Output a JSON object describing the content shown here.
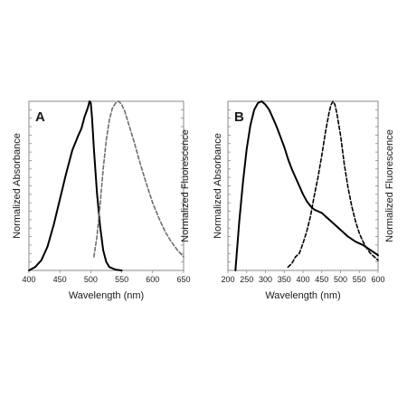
{
  "chart_data": [
    {
      "type": "line",
      "panel_label": "A",
      "xlabel": "Wavelength (nm)",
      "ylabel_left": "Normalized Absorbance",
      "ylabel_right": "Normalized Fluorescence",
      "xlim": [
        400,
        650
      ],
      "ylim": [
        0,
        1
      ],
      "x_ticks": [
        "400",
        "450",
        "500",
        "550",
        "600",
        "650"
      ],
      "x_tick_values": [
        400,
        450,
        500,
        550,
        600,
        650
      ],
      "grid": false,
      "legend": "none",
      "series": [
        {
          "role": "absorbance",
          "style": "solid",
          "color": "#000000",
          "x": [
            400,
            410,
            420,
            430,
            440,
            450,
            460,
            470,
            480,
            485,
            490,
            495,
            498,
            500,
            502,
            505,
            510,
            515,
            520,
            525,
            530,
            540,
            550
          ],
          "y": [
            0.0,
            0.02,
            0.06,
            0.14,
            0.27,
            0.42,
            0.57,
            0.71,
            0.8,
            0.84,
            0.91,
            0.96,
            1.0,
            0.99,
            0.9,
            0.72,
            0.46,
            0.26,
            0.12,
            0.05,
            0.02,
            0.005,
            0.0
          ]
        },
        {
          "role": "fluorescence",
          "style": "dashed",
          "color": "#6e6e6e",
          "x": [
            505,
            510,
            515,
            520,
            525,
            530,
            535,
            540,
            545,
            550,
            555,
            560,
            570,
            580,
            590,
            600,
            610,
            620,
            630,
            640,
            650
          ],
          "y": [
            0.08,
            0.2,
            0.39,
            0.6,
            0.77,
            0.89,
            0.96,
            0.99,
            1.0,
            0.98,
            0.94,
            0.88,
            0.76,
            0.63,
            0.51,
            0.4,
            0.31,
            0.23,
            0.17,
            0.12,
            0.08
          ]
        }
      ]
    },
    {
      "type": "line",
      "panel_label": "B",
      "xlabel": "Wavelength (nm)",
      "ylabel_left": "Normalized Absorbance",
      "ylabel_right": "Normalized Fluorescence",
      "xlim": [
        200,
        600
      ],
      "ylim": [
        0,
        1
      ],
      "x_ticks": [
        "200",
        "250",
        "300",
        "350",
        "400",
        "450",
        "500",
        "550",
        "600"
      ],
      "x_tick_values": [
        200,
        250,
        300,
        350,
        400,
        450,
        500,
        550,
        600
      ],
      "grid": false,
      "legend": "none",
      "series": [
        {
          "role": "absorbance",
          "style": "solid",
          "color": "#000000",
          "x": [
            220,
            230,
            240,
            250,
            260,
            270,
            280,
            290,
            300,
            310,
            320,
            330,
            340,
            350,
            360,
            370,
            380,
            390,
            400,
            410,
            420,
            430,
            440,
            450,
            460,
            470,
            480,
            490,
            500,
            510,
            520,
            540,
            560,
            580,
            600
          ],
          "y": [
            0.0,
            0.28,
            0.52,
            0.72,
            0.86,
            0.95,
            0.99,
            1.0,
            0.98,
            0.95,
            0.9,
            0.85,
            0.79,
            0.73,
            0.66,
            0.6,
            0.55,
            0.5,
            0.45,
            0.41,
            0.38,
            0.36,
            0.35,
            0.34,
            0.32,
            0.3,
            0.28,
            0.26,
            0.24,
            0.22,
            0.2,
            0.17,
            0.15,
            0.12,
            0.09
          ]
        },
        {
          "role": "fluorescence",
          "style": "dashed",
          "color": "#000000",
          "x": [
            360,
            370,
            380,
            390,
            400,
            410,
            420,
            430,
            440,
            450,
            460,
            470,
            475,
            480,
            485,
            490,
            500,
            510,
            520,
            530,
            540,
            550,
            560,
            570,
            580,
            590,
            600
          ],
          "y": [
            0.02,
            0.04,
            0.08,
            0.1,
            0.16,
            0.23,
            0.32,
            0.44,
            0.55,
            0.68,
            0.82,
            0.94,
            0.98,
            1.0,
            0.98,
            0.93,
            0.8,
            0.63,
            0.49,
            0.38,
            0.29,
            0.22,
            0.17,
            0.13,
            0.1,
            0.08,
            0.06
          ]
        }
      ]
    }
  ]
}
